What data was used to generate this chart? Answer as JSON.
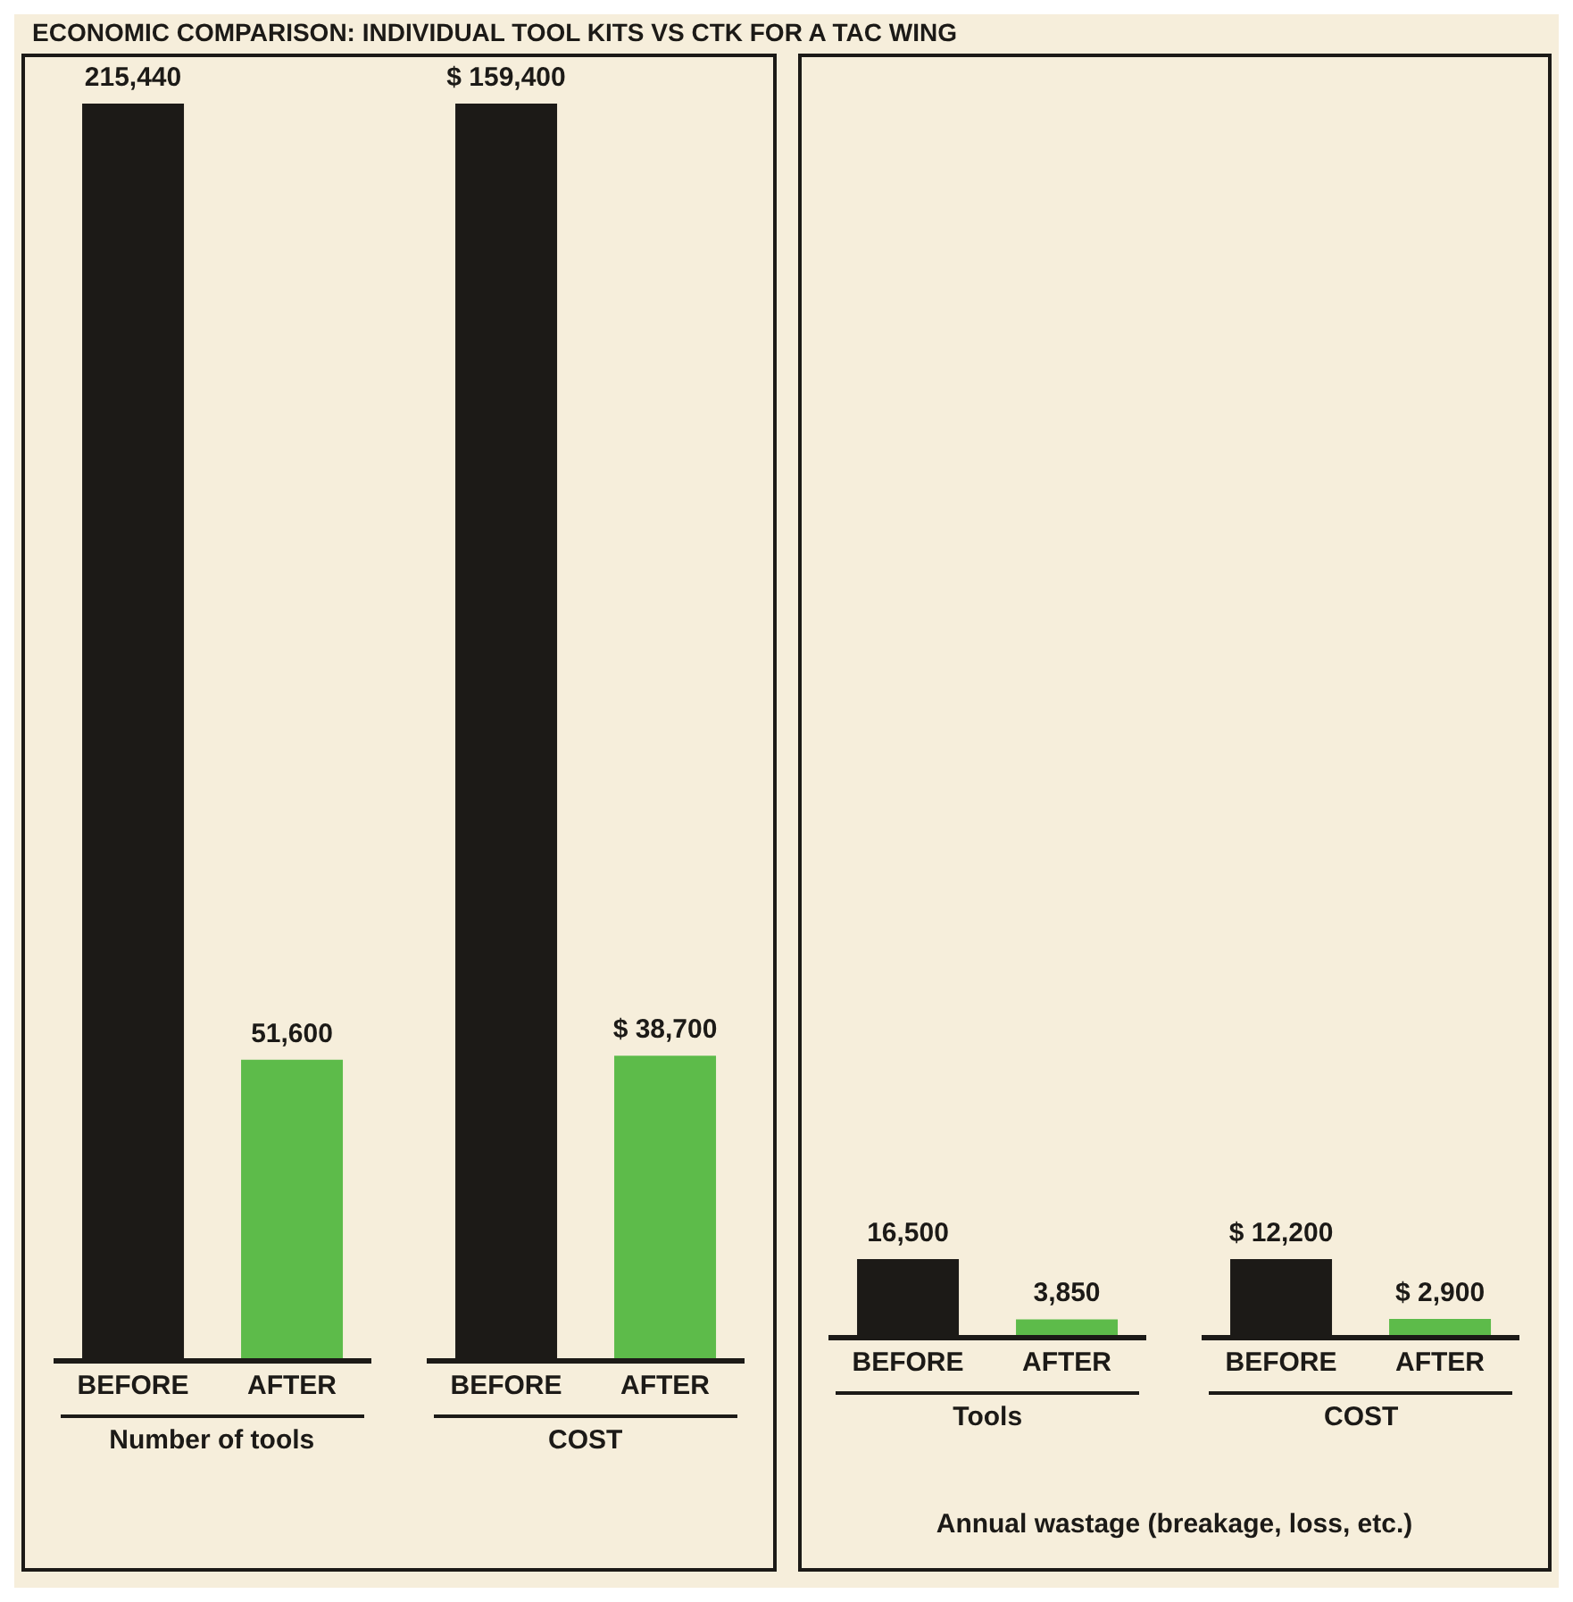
{
  "chart_data": [
    {
      "type": "bar",
      "title": "ECONOMIC COMPARISON: INDIVIDUAL TOOL KITS VS CTK FOR A TAC WING",
      "xlabel": "Number of tools",
      "categories": [
        "BEFORE",
        "AFTER"
      ],
      "values": [
        215440,
        51600
      ],
      "colors": [
        "#1c1a17",
        "#5dbb4a"
      ],
      "value_labels": [
        "215,440",
        "51,600"
      ]
    },
    {
      "type": "bar",
      "xlabel": "COST",
      "categories": [
        "BEFORE",
        "AFTER"
      ],
      "values": [
        159400,
        38700
      ],
      "colors": [
        "#1c1a17",
        "#5dbb4a"
      ],
      "value_labels": [
        "$ 159,400",
        "$ 38,700"
      ]
    },
    {
      "type": "bar",
      "xlabel": "Tools",
      "categories": [
        "BEFORE",
        "AFTER"
      ],
      "values": [
        16500,
        3850
      ],
      "colors": [
        "#1c1a17",
        "#5dbb4a"
      ],
      "value_labels": [
        "16,500",
        "3,850"
      ],
      "annotations": [
        "Annual wastage (breakage, loss, etc.)"
      ]
    },
    {
      "type": "bar",
      "xlabel": "COST",
      "categories": [
        "BEFORE",
        "AFTER"
      ],
      "values": [
        12200,
        2900
      ],
      "colors": [
        "#1c1a17",
        "#5dbb4a"
      ],
      "value_labels": [
        "$ 12,200",
        "$ 2,900"
      ]
    }
  ]
}
